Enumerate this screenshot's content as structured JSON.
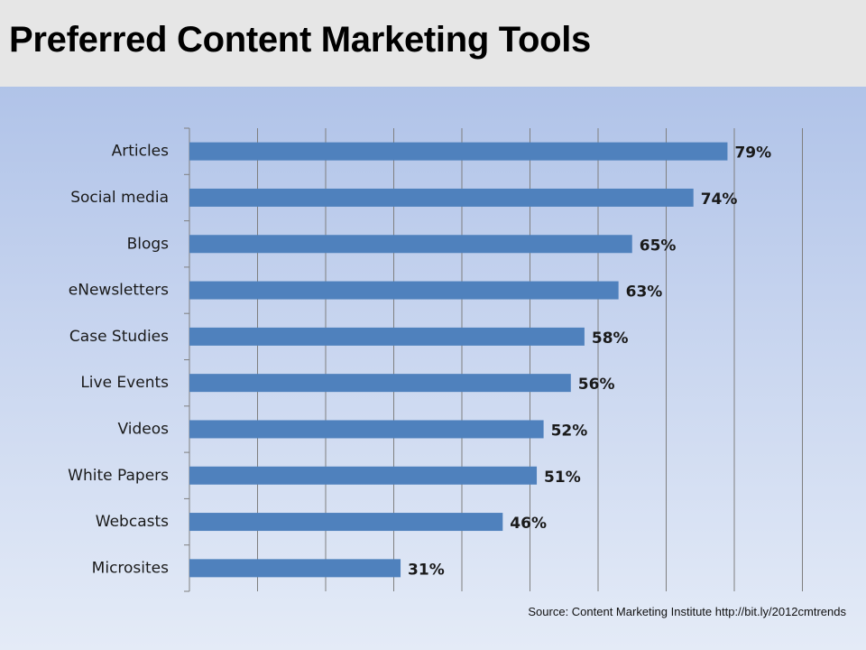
{
  "title": "Preferred Content Marketing Tools",
  "source": "Source: Content Marketing Institute http://bit.ly/2012cmtrends",
  "colors": {
    "bar": "#4f81bd",
    "grid": "#7f7f7f",
    "title_band": "#e6e6e6"
  },
  "chart_data": {
    "type": "bar",
    "orientation": "horizontal",
    "categories": [
      "Articles",
      "Social media",
      "Blogs",
      "eNewsletters",
      "Case Studies",
      "Live Events",
      "Videos",
      "White Papers",
      "Webcasts",
      "Microsites"
    ],
    "values": [
      79,
      74,
      65,
      63,
      58,
      56,
      52,
      51,
      46,
      31
    ],
    "data_labels": [
      "79%",
      "74%",
      "65%",
      "63%",
      "58%",
      "56%",
      "52%",
      "51%",
      "46%",
      "31%"
    ],
    "xlim": [
      0,
      90
    ],
    "grid": true,
    "xlabel": "",
    "ylabel": ""
  }
}
